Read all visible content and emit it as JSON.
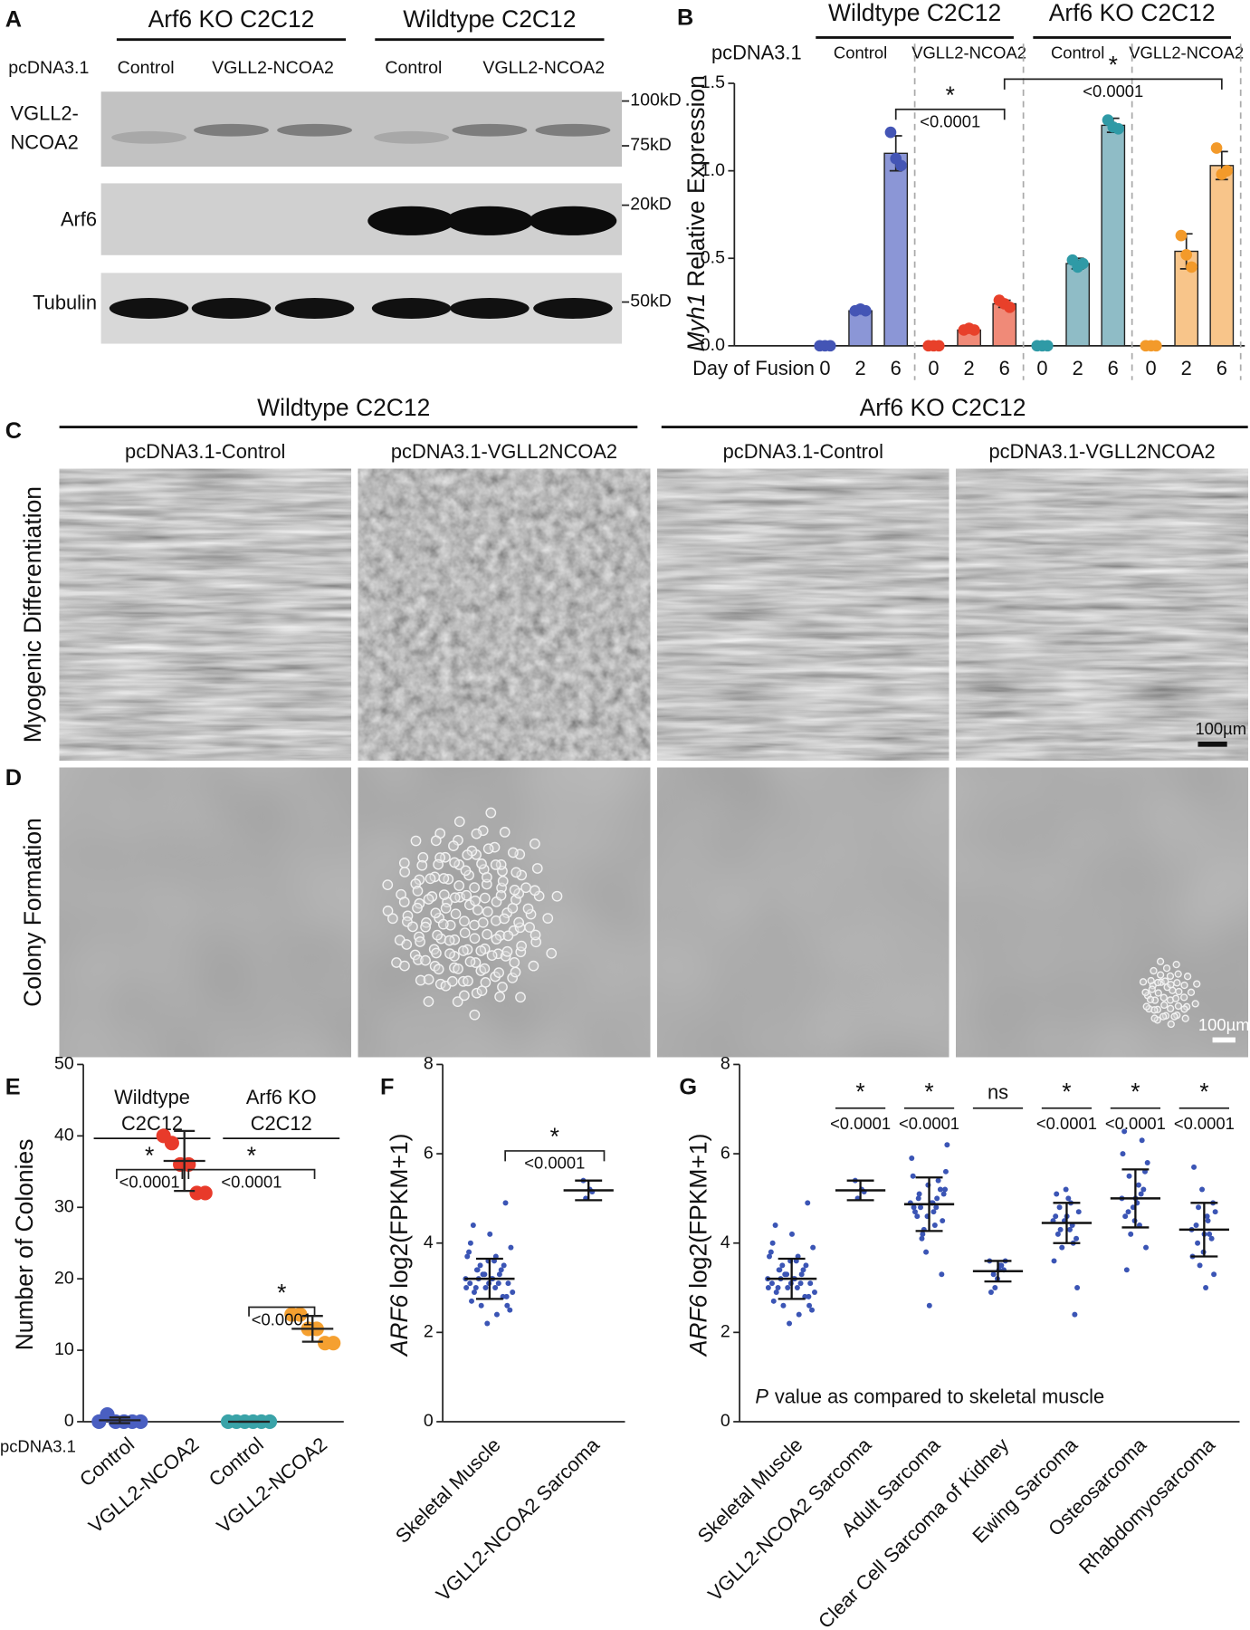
{
  "panel_a": {
    "letter": "A",
    "groups": [
      "Arf6 KO C2C12",
      "Wildtype C2C12"
    ],
    "construct_label": "pcDNA3.1",
    "lane_labels": [
      "Control",
      "VGLL2-NCOA2",
      "Control",
      "VGLL2-NCOA2"
    ],
    "rows": [
      [
        "VGLL2-",
        "NCOA2"
      ],
      [
        "Arf6"
      ],
      [
        "Tubulin"
      ]
    ],
    "markers": [
      "100kD",
      "75kD",
      "20kD",
      "50kD"
    ]
  },
  "panel_cd": {
    "letters": [
      "C",
      "D"
    ],
    "groups": [
      "Wildtype C2C12",
      "Arf6 KO C2C12"
    ],
    "columns": [
      "pcDNA3.1-Control",
      "pcDNA3.1-VGLL2NCOA2",
      "pcDNA3.1-Control",
      "pcDNA3.1-VGLL2NCOA2"
    ],
    "rows": [
      "Myogenic Differentiation",
      "Colony Formation"
    ],
    "scale_bar": "100µm"
  },
  "chart_data": [
    {
      "type": "bar",
      "letter": "B",
      "ylabel_italic": "Myh1",
      "ylabel": "Relative Expression",
      "ylim": [
        0,
        1.5
      ],
      "yticks": [
        {
          "value": 0,
          "label": "0.0"
        },
        {
          "value": 0.5,
          "label": "0.5"
        },
        {
          "value": 1,
          "label": "1.0"
        },
        {
          "value": 1.5,
          "label": "1.5"
        }
      ],
      "xlabel": "Day of Fusion",
      "categories": [
        "0",
        "2",
        "6"
      ],
      "construct_label": "pcDNA3.1",
      "groups": [
        {
          "name": "Wildtype C2C12",
          "series": [
            {
              "name": "Control",
              "color": "#8b96d6",
              "point_color": "#4455b5",
              "values": [
                0,
                0.2,
                1.1
              ],
              "errors": [
                0,
                0.01,
                0.1
              ],
              "points": [
                [
                  0,
                  0,
                  0
                ],
                [
                  0.2,
                  0.21,
                  0.2
                ],
                [
                  1.22,
                  1.07,
                  1.03
                ]
              ]
            },
            {
              "name": "VGLL2-NCOA2",
              "color": "#f08a78",
              "point_color": "#e8402a",
              "values": [
                0,
                0.09,
                0.24
              ],
              "errors": [
                0,
                0.01,
                0.02
              ],
              "points": [
                [
                  0,
                  0,
                  0
                ],
                [
                  0.09,
                  0.1,
                  0.09
                ],
                [
                  0.26,
                  0.24,
                  0.22
                ]
              ]
            }
          ]
        },
        {
          "name": "Arf6 KO C2C12",
          "series": [
            {
              "name": "Control",
              "color": "#8fbcc6",
              "point_color": "#2f9aa6",
              "values": [
                0,
                0.47,
                1.26
              ],
              "errors": [
                0,
                0.03,
                0.04
              ],
              "points": [
                [
                  0,
                  0,
                  0
                ],
                [
                  0.49,
                  0.45,
                  0.47
                ],
                [
                  1.29,
                  1.25,
                  1.24
                ]
              ]
            },
            {
              "name": "VGLL2-NCOA2",
              "color": "#f8c58a",
              "point_color": "#f39a2a",
              "values": [
                0,
                0.54,
                1.03
              ],
              "errors": [
                0,
                0.1,
                0.08
              ],
              "points": [
                [
                  0,
                  0,
                  0
                ],
                [
                  0.63,
                  0.52,
                  0.45
                ],
                [
                  1.13,
                  0.98,
                  1.0
                ]
              ]
            }
          ]
        }
      ],
      "annotations": [
        {
          "star": "*",
          "p": "<0.0001"
        },
        {
          "star": "*",
          "p": "<0.0001"
        }
      ]
    },
    {
      "type": "dot",
      "letter": "E",
      "ylabel": "Number of Colonies",
      "ylim": [
        0,
        50
      ],
      "yticks": [
        0,
        10,
        20,
        30,
        40,
        50
      ],
      "construct_label": "pcDNA3.1",
      "groups": [
        [
          "Wildtype",
          "C2C12"
        ],
        [
          "Arf6 KO",
          "C2C12"
        ]
      ],
      "categories": [
        "Control",
        "VGLL2-NCOA2",
        "Control",
        "VGLL2-NCOA2"
      ],
      "series": [
        {
          "color": "#4a5fc1",
          "points": [
            0,
            1,
            0,
            0,
            0,
            0
          ],
          "mean": 0.2,
          "sd": 0.4
        },
        {
          "color": "#e83a2a",
          "points": [
            40,
            39,
            36,
            36,
            32,
            32
          ],
          "mean": 36.5,
          "sd": 4.2
        },
        {
          "color": "#3aa3a8",
          "points": [
            0,
            0,
            0,
            0,
            0,
            0
          ],
          "mean": 0,
          "sd": 0
        },
        {
          "color": "#f5a030",
          "points": [
            15,
            15,
            13,
            13,
            11,
            11
          ],
          "mean": 13,
          "sd": 1.8
        }
      ],
      "annotations": [
        {
          "star": "*",
          "p": "<0.0001"
        },
        {
          "star": "*",
          "p": "<0.0001"
        },
        {
          "star": "*",
          "p": "<0.0001"
        }
      ]
    },
    {
      "type": "swarm",
      "letter": "F",
      "ylabel_italic": "ARF6",
      "ylabel": "log2(FPKM+1)",
      "ylim": [
        0,
        8
      ],
      "yticks": [
        0,
        2,
        4,
        6,
        8
      ],
      "categories": [
        "Skeletal Muscle",
        "VGLL2-NCOA2 Sarcoma"
      ],
      "color": "#3b55b5",
      "series": [
        {
          "points": [
            3.2,
            3.0,
            3.4,
            2.8,
            3.6,
            3.1,
            3.3,
            2.6,
            3.9,
            3.2,
            2.9,
            3.5,
            3.0,
            3.7,
            2.4,
            3.2,
            3.1,
            4.2,
            2.7,
            3.4,
            3.3,
            2.9,
            3.6,
            3.0,
            4.9,
            2.2,
            3.8,
            3.1,
            3.5,
            2.5,
            3.2,
            4.4,
            2.8,
            3.3,
            3.0,
            3.7,
            3.4,
            2.6,
            3.1,
            4.0
          ],
          "mean": 3.2,
          "sd": 0.45
        },
        {
          "points": [
            5.4,
            5.2,
            5.0,
            5.15
          ],
          "mean": 5.18,
          "sd": 0.22
        }
      ],
      "annotations": [
        {
          "star": "*",
          "p": "<0.0001"
        }
      ]
    },
    {
      "type": "swarm",
      "letter": "G",
      "ylabel_italic": "ARF6",
      "ylabel": "log2(FPKM+1)",
      "ylim": [
        0,
        8
      ],
      "yticks": [
        0,
        2,
        4,
        6,
        8
      ],
      "categories": [
        "Skeletal Muscle",
        "VGLL2-NCOA2 Sarcoma",
        "Adult Sarcoma",
        "Clear Cell Sarcoma of Kidney",
        "Ewing Sarcoma",
        "Osteosarcoma",
        "Rhabdomyosarcoma"
      ],
      "color": "#3b55b5",
      "series": [
        {
          "points": [
            3.2,
            3.0,
            3.4,
            2.8,
            3.6,
            3.1,
            3.3,
            2.6,
            3.9,
            3.2,
            2.9,
            3.5,
            3.0,
            3.7,
            2.4,
            3.2,
            3.1,
            4.2,
            2.7,
            3.4,
            3.3,
            2.9,
            3.6,
            3.0,
            4.9,
            2.2,
            3.8,
            3.1,
            3.5,
            2.5,
            3.2,
            4.4,
            2.8,
            3.3,
            3.0,
            3.7,
            3.4,
            2.6,
            3.1,
            4.0
          ],
          "mean": 3.2,
          "sd": 0.45
        },
        {
          "points": [
            5.4,
            5.2,
            5.0,
            5.15
          ],
          "mean": 5.18,
          "sd": 0.22
        },
        {
          "points": [
            4.9,
            4.7,
            5.1,
            4.5,
            5.3,
            4.8,
            5.0,
            4.2,
            5.6,
            4.9,
            4.6,
            5.2,
            3.8,
            5.9,
            4.4,
            4.8,
            5.1,
            2.6,
            4.7,
            5.4,
            4.3,
            6.2,
            4.9,
            5.0,
            3.3,
            4.6,
            5.5,
            4.8,
            4.1,
            5.2
          ],
          "mean": 4.87,
          "sd": 0.6
        },
        {
          "points": [
            3.6,
            3.5,
            3.3,
            3.4,
            3.2,
            2.9,
            3.5,
            3.0,
            3.6,
            3.4
          ],
          "mean": 3.37,
          "sd": 0.23
        },
        {
          "points": [
            4.5,
            4.3,
            4.8,
            4.1,
            5.2,
            4.6,
            4.4,
            3.9,
            4.7,
            5.0,
            4.2,
            2.4,
            4.5,
            3.6,
            4.9,
            4.3,
            3.0,
            4.6,
            5.1,
            4.0
          ],
          "mean": 4.45,
          "sd": 0.45
        },
        {
          "points": [
            5.0,
            5.3,
            4.7,
            5.6,
            4.5,
            6.5,
            5.1,
            4.2,
            5.8,
            4.9,
            3.4,
            5.2,
            4.8,
            6.0,
            4.4,
            5.5,
            3.9,
            5.0,
            4.6,
            6.3
          ],
          "mean": 5.0,
          "sd": 0.65
        },
        {
          "points": [
            4.3,
            4.6,
            4.0,
            4.9,
            3.8,
            5.7,
            4.2,
            3.5,
            4.7,
            3.0,
            4.4,
            4.1,
            5.2,
            3.7,
            4.5,
            4.8,
            3.3,
            4.2
          ],
          "mean": 4.3,
          "sd": 0.6
        }
      ],
      "annotations": [
        {
          "star": "*",
          "p": "<0.0001"
        },
        {
          "star": "*",
          "p": "<0.0001"
        },
        {
          "star": "ns"
        },
        {
          "star": "*",
          "p": "<0.0001"
        },
        {
          "star": "*",
          "p": "<0.0001"
        },
        {
          "star": "*",
          "p": "<0.0001"
        }
      ],
      "note_italic": "P",
      "note": "value as compared to skeletal muscle"
    }
  ]
}
